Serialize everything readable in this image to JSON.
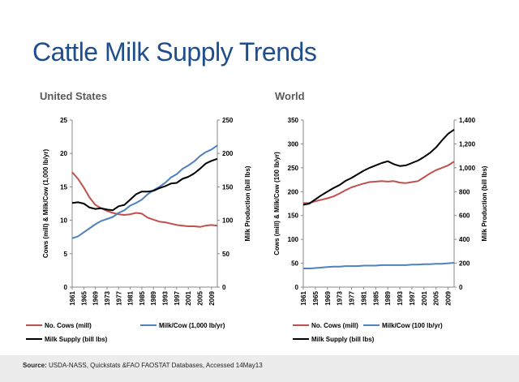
{
  "slide": {
    "title": "Cattle Milk Supply Trends",
    "source_label": "Source:",
    "source_text": " USDA-NASS, Quickstats &FAO FAOSTAT Databases, Accessed 14May13"
  },
  "chart_data": [
    {
      "type": "line",
      "title": "United States",
      "x_ticks": [
        "1961",
        "1965",
        "1969",
        "1973",
        "1977",
        "1981",
        "1985",
        "1989",
        "1993",
        "1997",
        "2001",
        "2005",
        "2009"
      ],
      "xlim": [
        1961,
        2011
      ],
      "left_axis": {
        "label": "Cows (mill) & Milk/Cow (1,000 lb/yr)",
        "lim": [
          0,
          25
        ],
        "ticks": [
          "0",
          "5",
          "10",
          "15",
          "20",
          "25"
        ]
      },
      "right_axis": {
        "label": "Milk Production (bill lbs)",
        "lim": [
          0,
          250
        ],
        "ticks": [
          "0",
          "50",
          "100",
          "150",
          "200",
          "250"
        ]
      },
      "series": [
        {
          "name": "No. Cows (mill)",
          "axis": "left",
          "color": "#c0504d",
          "x": [
            1961,
            1963,
            1965,
            1967,
            1969,
            1971,
            1973,
            1975,
            1977,
            1979,
            1981,
            1983,
            1985,
            1987,
            1989,
            1991,
            1993,
            1995,
            1997,
            1999,
            2001,
            2003,
            2005,
            2007,
            2009,
            2011
          ],
          "y": [
            17.2,
            16.2,
            14.9,
            13.4,
            12.3,
            11.8,
            11.4,
            11.1,
            10.9,
            10.8,
            10.9,
            11.1,
            11.0,
            10.4,
            10.1,
            9.8,
            9.7,
            9.5,
            9.3,
            9.2,
            9.1,
            9.1,
            9.0,
            9.2,
            9.3,
            9.2
          ]
        },
        {
          "name": "Milk/Cow (1,000 lb/yr)",
          "axis": "left",
          "color": "#4f81bd",
          "x": [
            1961,
            1963,
            1965,
            1967,
            1969,
            1971,
            1973,
            1975,
            1977,
            1979,
            1981,
            1983,
            1985,
            1987,
            1989,
            1991,
            1993,
            1995,
            1997,
            1999,
            2001,
            2003,
            2005,
            2007,
            2009,
            2011
          ],
          "y": [
            7.3,
            7.6,
            8.2,
            8.8,
            9.4,
            9.9,
            10.2,
            10.5,
            11.1,
            11.5,
            12.2,
            12.6,
            13.1,
            13.9,
            14.5,
            15.0,
            15.6,
            16.4,
            16.9,
            17.7,
            18.2,
            18.8,
            19.6,
            20.2,
            20.6,
            21.2
          ]
        },
        {
          "name": "Milk Supply (bill lbs)",
          "axis": "right",
          "color": "#000000",
          "x": [
            1961,
            1963,
            1965,
            1967,
            1969,
            1971,
            1973,
            1975,
            1977,
            1979,
            1981,
            1983,
            1985,
            1987,
            1989,
            1991,
            1993,
            1995,
            1997,
            1999,
            2001,
            2003,
            2005,
            2007,
            2009,
            2011
          ],
          "y": [
            126,
            127,
            125,
            119,
            117,
            118,
            116,
            115,
            121,
            123,
            131,
            139,
            143,
            143,
            144,
            148,
            151,
            155,
            156,
            162,
            165,
            170,
            177,
            185,
            189,
            192
          ]
        }
      ]
    },
    {
      "type": "line",
      "title": "World",
      "x_ticks": [
        "1961",
        "1965",
        "1969",
        "1973",
        "1977",
        "1981",
        "1985",
        "1989",
        "1993",
        "1997",
        "2001",
        "2005",
        "2009"
      ],
      "xlim": [
        1961,
        2011
      ],
      "left_axis": {
        "label": "Cows (mill) & Milk/Cow (100 lb/yr)",
        "lim": [
          0,
          350
        ],
        "ticks": [
          "0",
          "50",
          "100",
          "150",
          "200",
          "250",
          "300",
          "350"
        ]
      },
      "right_axis": {
        "label": "Milk Production (bill lbs)",
        "lim": [
          0,
          1400
        ],
        "ticks": [
          "0",
          "200",
          "400",
          "600",
          "800",
          "1,000",
          "1,200",
          "1,400"
        ]
      },
      "series": [
        {
          "name": "No. Cows (mill)",
          "axis": "left",
          "color": "#c0504d",
          "x": [
            1961,
            1963,
            1965,
            1967,
            1969,
            1971,
            1973,
            1975,
            1977,
            1979,
            1981,
            1983,
            1985,
            1987,
            1989,
            1991,
            1993,
            1995,
            1997,
            1999,
            2001,
            2003,
            2005,
            2007,
            2009,
            2011
          ],
          "y": [
            176,
            176,
            180,
            183,
            186,
            190,
            196,
            203,
            209,
            213,
            217,
            220,
            221,
            222,
            221,
            222,
            219,
            218,
            220,
            222,
            230,
            238,
            245,
            250,
            255,
            263
          ]
        },
        {
          "name": "Milk/Cow (100 lb/yr)",
          "axis": "left",
          "color": "#4f81bd",
          "x": [
            1961,
            1963,
            1965,
            1967,
            1969,
            1971,
            1973,
            1975,
            1977,
            1979,
            1981,
            1983,
            1985,
            1987,
            1989,
            1991,
            1993,
            1995,
            1997,
            1999,
            2001,
            2003,
            2005,
            2007,
            2009,
            2011
          ],
          "y": [
            39,
            39,
            40,
            41,
            42,
            43,
            43,
            44,
            44,
            44,
            45,
            45,
            45,
            46,
            46,
            46,
            46,
            46,
            47,
            47,
            48,
            48,
            49,
            49,
            50,
            51
          ]
        },
        {
          "name": "Milk Supply (bill lbs)",
          "axis": "right",
          "color": "#000000",
          "x": [
            1961,
            1963,
            1965,
            1967,
            1969,
            1971,
            1973,
            1975,
            1977,
            1979,
            1981,
            1983,
            1985,
            1987,
            1989,
            1991,
            1993,
            1995,
            1997,
            1999,
            2001,
            2003,
            2005,
            2007,
            2009,
            2011
          ],
          "y": [
            690,
            700,
            735,
            770,
            800,
            830,
            855,
            890,
            915,
            945,
            975,
            1000,
            1020,
            1040,
            1055,
            1030,
            1015,
            1020,
            1040,
            1060,
            1090,
            1125,
            1170,
            1230,
            1285,
            1320
          ]
        }
      ]
    }
  ]
}
